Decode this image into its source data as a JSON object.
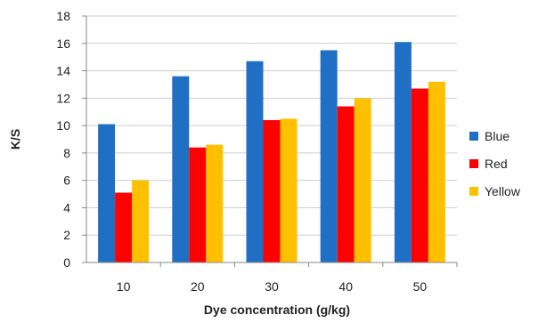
{
  "chart_data": {
    "type": "bar",
    "title": "",
    "xlabel": "Dye concentration (g/kg)",
    "ylabel": "K/S",
    "categories": [
      "10",
      "20",
      "30",
      "40",
      "50"
    ],
    "ylim": [
      0,
      18
    ],
    "yticks": [
      0,
      2,
      4,
      6,
      8,
      10,
      12,
      14,
      16,
      18
    ],
    "grid": true,
    "legend_position": "right",
    "series": [
      {
        "name": "Blue",
        "color": "#1f6fc5",
        "values": [
          10.1,
          13.6,
          14.7,
          15.5,
          16.1
        ]
      },
      {
        "name": "Red",
        "color": "#ff0000",
        "values": [
          5.1,
          8.4,
          10.4,
          11.4,
          12.7
        ]
      },
      {
        "name": "Yellow",
        "color": "#ffc000",
        "values": [
          6.0,
          8.6,
          10.5,
          12.0,
          13.2
        ]
      }
    ]
  }
}
